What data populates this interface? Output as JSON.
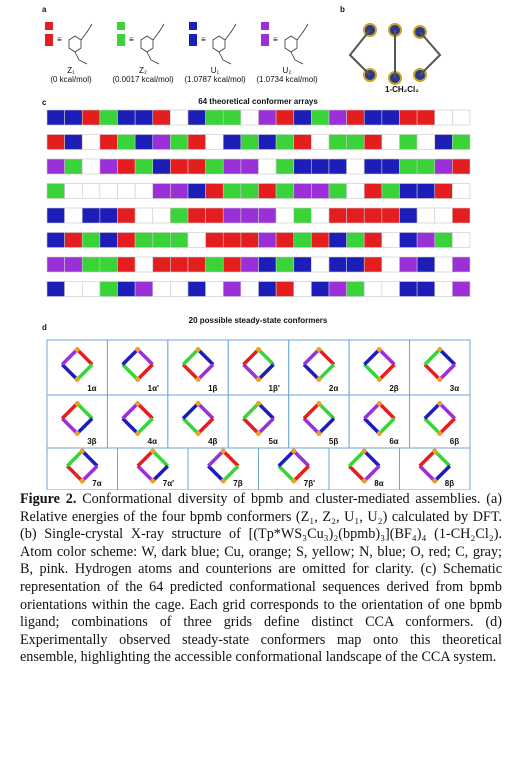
{
  "panel_a": {
    "label": "a",
    "conformers": [
      {
        "name": "Z₁",
        "energy": "(0 kcal/mol)"
      },
      {
        "name": "Z₂",
        "energy": "(0.0017 kcal/mol)"
      },
      {
        "name": "U₁",
        "energy": "(1.0787 kcal/mol)"
      },
      {
        "name": "U₂",
        "energy": "(1.0734 kcal/mol)"
      }
    ]
  },
  "panel_b": {
    "label": "b",
    "compound": "1-CH₂Cl₂"
  },
  "panel_c": {
    "label": "c",
    "title": "64 theoretical conformer arrays"
  },
  "panel_d": {
    "label": "d",
    "title": "20 possible steady-state conformers",
    "conformers": [
      "1α",
      "1α'",
      "1β",
      "1β'",
      "2α",
      "2β",
      "3α",
      "3β",
      "4α",
      "4β",
      "5α",
      "5β",
      "6α",
      "6β",
      "7α",
      "7α'",
      "7β",
      "7β'",
      "8α",
      "8β"
    ]
  },
  "caption": {
    "label": "Figure 2.",
    "text": "Conformational diversity of bpmb and cluster-mediated assemblies. (a) Relative energies of the four bpmb conformers (Z₁, Z₂, U₁, U₂) calculated by DFT. (b) Single-crystal X-ray structure of [(Tp*WS₃Cu₃)₂(bpmb)₃](BF₄)₄ (1-CH₂Cl₂). Atom color scheme: W, dark blue; Cu, orange; S, yellow; N, blue; O, red; C, gray; B, pink. Hydrogen atoms and counterions are omitted for clarity. (c) Schematic representation of the 64 predicted conformational sequences derived from bpmb orientations within the cage. Each grid corresponds to the orientation of one bpmb ligand; combinations of three grids define distinct CCA conformers. (d) Experimentally observed steady-state conformers map onto this theoretical ensemble, highlighting the accessible conformational landscape of the CCA system."
  }
}
